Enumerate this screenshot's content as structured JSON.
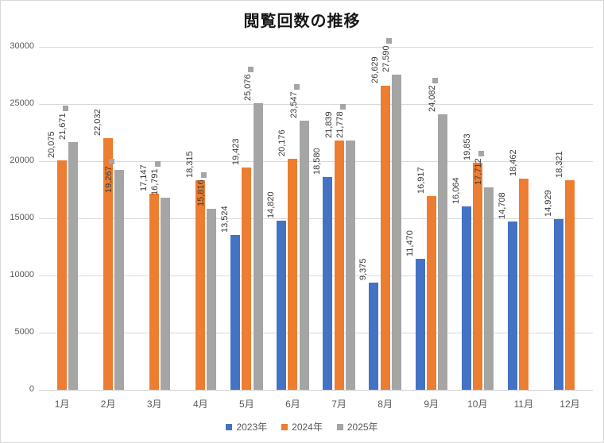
{
  "title": "閲覧回数の推移",
  "chart_data": {
    "type": "bar",
    "categories": [
      "1月",
      "2月",
      "3月",
      "4月",
      "5月",
      "6月",
      "7月",
      "8月",
      "9月",
      "10月",
      "11月",
      "12月"
    ],
    "series": [
      {
        "name": "2023年",
        "color": "#4472C4",
        "values": [
          null,
          null,
          null,
          null,
          13524,
          14820,
          18580,
          9375,
          11470,
          16064,
          14708,
          14929
        ]
      },
      {
        "name": "2024年",
        "color": "#ED7D31",
        "values": [
          20075,
          22032,
          17147,
          18315,
          19423,
          20176,
          21839,
          26629,
          16917,
          19853,
          18462,
          18321
        ]
      },
      {
        "name": "2025年",
        "color": "#A5A5A5",
        "values": [
          21671,
          19267,
          16791,
          15816,
          25076,
          23547,
          21778,
          27590,
          24082,
          17712,
          null,
          null
        ]
      }
    ],
    "title": "閲覧回数の推移",
    "xlabel": "",
    "ylabel": "",
    "ylim": [
      0,
      30000
    ],
    "ytick_interval": 5000,
    "ytick_labels": [
      "0",
      "5000",
      "10000",
      "15000",
      "20000",
      "25000",
      "30000"
    ],
    "grid": true,
    "legend_position": "bottom",
    "data_labels": true,
    "data_label_format": "#,##0",
    "legend_key_on_labels_series": "2025年"
  },
  "legend": {
    "items": [
      {
        "label": "2023年",
        "color": "#4472C4"
      },
      {
        "label": "2024年",
        "color": "#ED7D31"
      },
      {
        "label": "2025年",
        "color": "#A5A5A5"
      }
    ]
  },
  "colors": {
    "series_blue": "#4472C4",
    "series_orange": "#ED7D31",
    "series_gray": "#A5A5A5",
    "grid": "#D9D9D9",
    "axis_text": "#595959",
    "data_label_text": "#3A3A3A",
    "background": "#FFFFFF",
    "border": "#D9D9D9"
  }
}
